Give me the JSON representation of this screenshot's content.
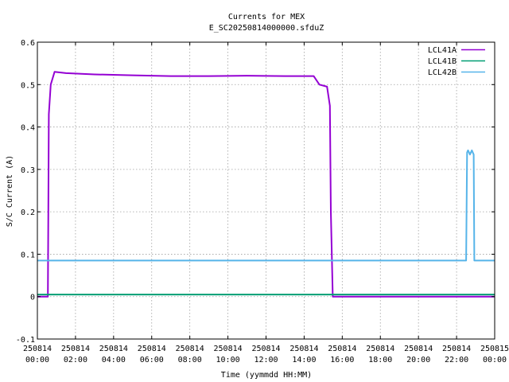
{
  "chart_data": {
    "type": "line",
    "title": "Currents for MEX",
    "subtitle": "E_SC20250814000000.sfduZ",
    "xlabel": "Time (yymmdd HH:MM)",
    "ylabel": "S/C Current (A)",
    "xlim": [
      0,
      24
    ],
    "ylim": [
      -0.1,
      0.6
    ],
    "grid": true,
    "legend_position": "top-right",
    "x_ticks": [
      {
        "hours": 0,
        "date": "250814",
        "time": "00:00"
      },
      {
        "hours": 2,
        "date": "250814",
        "time": "02:00"
      },
      {
        "hours": 4,
        "date": "250814",
        "time": "04:00"
      },
      {
        "hours": 6,
        "date": "250814",
        "time": "06:00"
      },
      {
        "hours": 8,
        "date": "250814",
        "time": "08:00"
      },
      {
        "hours": 10,
        "date": "250814",
        "time": "10:00"
      },
      {
        "hours": 12,
        "date": "250814",
        "time": "12:00"
      },
      {
        "hours": 14,
        "date": "250814",
        "time": "14:00"
      },
      {
        "hours": 16,
        "date": "250814",
        "time": "16:00"
      },
      {
        "hours": 18,
        "date": "250814",
        "time": "18:00"
      },
      {
        "hours": 20,
        "date": "250814",
        "time": "20:00"
      },
      {
        "hours": 22,
        "date": "250814",
        "time": "22:00"
      },
      {
        "hours": 24,
        "date": "250815",
        "time": "00:00"
      }
    ],
    "y_ticks": [
      {
        "value": -0.1,
        "label": "-0.1"
      },
      {
        "value": 0,
        "label": "0"
      },
      {
        "value": 0.1,
        "label": "0.1"
      },
      {
        "value": 0.2,
        "label": "0.2"
      },
      {
        "value": 0.3,
        "label": "0.3"
      },
      {
        "value": 0.4,
        "label": "0.4"
      },
      {
        "value": 0.5,
        "label": "0.5"
      },
      {
        "value": 0.6,
        "label": "0.6"
      }
    ],
    "series": [
      {
        "name": "LCL41A",
        "color": "#9400d3",
        "x": [
          0,
          0.55,
          0.6,
          0.7,
          0.9,
          1.5,
          3,
          5,
          7,
          9,
          11,
          13,
          14.5,
          14.8,
          15.2,
          15.35,
          15.4,
          15.5,
          16,
          24
        ],
        "y": [
          0,
          0,
          0.43,
          0.5,
          0.53,
          0.527,
          0.524,
          0.522,
          0.52,
          0.52,
          0.521,
          0.52,
          0.52,
          0.5,
          0.495,
          0.45,
          0.2,
          0,
          0,
          0
        ]
      },
      {
        "name": "LCL41B",
        "color": "#009e73",
        "x": [
          0,
          24
        ],
        "y": [
          0.005,
          0.005
        ]
      },
      {
        "name": "LCL42B",
        "color": "#56b4e9",
        "x": [
          0,
          22.5,
          22.55,
          22.6,
          22.7,
          22.8,
          22.9,
          22.93,
          24
        ],
        "y": [
          0.085,
          0.085,
          0.34,
          0.345,
          0.335,
          0.345,
          0.335,
          0.085,
          0.085
        ]
      }
    ]
  }
}
